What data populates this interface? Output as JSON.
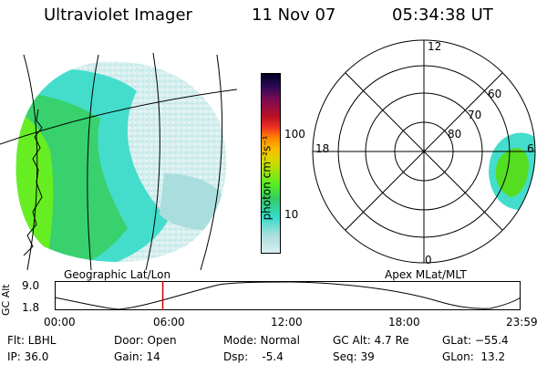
{
  "header": {
    "instrument": "Ultraviolet Imager",
    "date": "11 Nov 07",
    "time": "05:34:38 UT"
  },
  "colorbar": {
    "unit_label": "photon cm⁻²s⁻¹",
    "ticks": [
      "100",
      "10"
    ]
  },
  "left_panel": {
    "caption": "Geographic Lat/Lon"
  },
  "right_panel": {
    "caption": "Apex MLat/MLT",
    "mlt_labels": {
      "top": "12",
      "left": "18",
      "right": "6",
      "bottom": "0"
    },
    "lat_labels": [
      "60",
      "70",
      "80"
    ]
  },
  "altitude_strip": {
    "axis_label": "GC Alt",
    "y_top": "9.0",
    "y_bottom": "1.8",
    "time_ticks": [
      "00:00",
      "06:00",
      "12:00",
      "18:00",
      "23:59"
    ],
    "current_time_fraction": 0.232
  },
  "info": {
    "flt": "Flt: LBHL",
    "ip": "IP: 36.0",
    "door": "Door: Open",
    "gain": "Gain: 14",
    "mode": "Mode: Normal",
    "dsp": "Dsp:    -5.4",
    "gcalt": "GC Alt: 4.7 Re",
    "seq": "Seq: 39",
    "glat": "GLat: −55.4",
    "glon": "GLon:  13.2"
  },
  "colors": {
    "aurora_green": "#55dd22",
    "aurora_cyan": "#44ddcc",
    "faint": "#d6eeee",
    "marker": "#cc0000"
  }
}
